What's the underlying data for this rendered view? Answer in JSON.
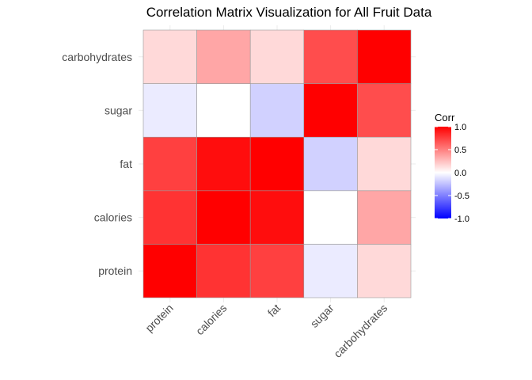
{
  "chart_data": {
    "type": "heatmap",
    "title": "Correlation Matrix Visualization for All Fruit Data",
    "xlabel": "",
    "ylabel": "",
    "variables": [
      "protein",
      "calories",
      "fat",
      "sugar",
      "carbohydrates"
    ],
    "values": [
      [
        1.0,
        0.8,
        0.75,
        -0.08,
        0.15
      ],
      [
        0.8,
        1.0,
        0.95,
        0.0,
        0.35
      ],
      [
        0.75,
        0.95,
        1.0,
        -0.18,
        0.15
      ],
      [
        -0.08,
        0.0,
        -0.18,
        1.0,
        0.7
      ],
      [
        0.15,
        0.35,
        0.15,
        0.7,
        1.0
      ]
    ],
    "grid": true,
    "legend": {
      "title": "Corr",
      "position": "right",
      "ticks": [
        "1.0",
        "0.5",
        "0.0",
        "-0.5",
        "-1.0"
      ],
      "tick_values": [
        1.0,
        0.5,
        0.0,
        -0.5,
        -1.0
      ],
      "limits": [
        -1,
        1
      ]
    },
    "colors": {
      "low": "#0000ff",
      "mid": "#ffffff",
      "high": "#ff0000",
      "cell_border": "#999999"
    }
  }
}
